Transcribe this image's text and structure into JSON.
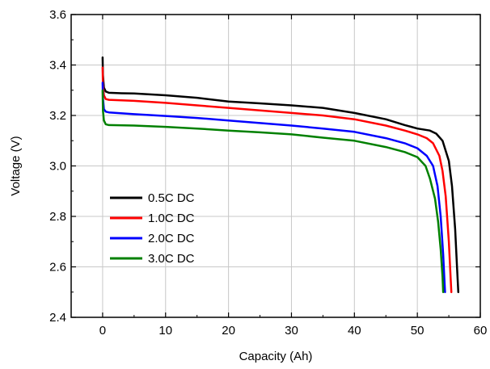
{
  "chart_data": {
    "type": "line",
    "title": "",
    "xlabel": "Capacity (Ah)",
    "ylabel": "Voltage (V)",
    "xlim": [
      -5,
      60
    ],
    "ylim": [
      2.4,
      3.6
    ],
    "xticks": [
      0,
      10,
      20,
      30,
      40,
      50,
      60
    ],
    "xtick_labels": [
      "0",
      "10",
      "20",
      "30",
      "40",
      "50",
      "60"
    ],
    "yticks": [
      2.4,
      2.6,
      2.8,
      3.0,
      3.2,
      3.4,
      3.6
    ],
    "ytick_labels": [
      "2.4",
      "2.6",
      "2.8",
      "3.0",
      "3.2",
      "3.4",
      "3.6"
    ],
    "grid": true,
    "legend_position": "bottom-left",
    "series": [
      {
        "name": "0.5C DC",
        "color": "#000000",
        "points": [
          [
            0,
            3.43
          ],
          [
            0.05,
            3.36
          ],
          [
            0.2,
            3.31
          ],
          [
            0.5,
            3.295
          ],
          [
            1.0,
            3.29
          ],
          [
            3,
            3.288
          ],
          [
            5,
            3.287
          ],
          [
            10,
            3.28
          ],
          [
            15,
            3.27
          ],
          [
            20,
            3.255
          ],
          [
            25,
            3.248
          ],
          [
            30,
            3.24
          ],
          [
            35,
            3.23
          ],
          [
            40,
            3.21
          ],
          [
            45,
            3.185
          ],
          [
            48,
            3.162
          ],
          [
            50,
            3.148
          ],
          [
            52,
            3.14
          ],
          [
            53,
            3.128
          ],
          [
            54,
            3.1
          ],
          [
            55,
            3.02
          ],
          [
            55.5,
            2.92
          ],
          [
            56,
            2.75
          ],
          [
            56.3,
            2.6
          ],
          [
            56.5,
            2.5
          ]
        ]
      },
      {
        "name": "1.0C DC",
        "color": "#ff0000",
        "points": [
          [
            0,
            3.39
          ],
          [
            0.05,
            3.32
          ],
          [
            0.2,
            3.28
          ],
          [
            0.5,
            3.265
          ],
          [
            1.0,
            3.262
          ],
          [
            5,
            3.258
          ],
          [
            10,
            3.25
          ],
          [
            15,
            3.24
          ],
          [
            20,
            3.23
          ],
          [
            25,
            3.22
          ],
          [
            30,
            3.21
          ],
          [
            35,
            3.2
          ],
          [
            40,
            3.185
          ],
          [
            45,
            3.16
          ],
          [
            48,
            3.14
          ],
          [
            50,
            3.125
          ],
          [
            51.5,
            3.11
          ],
          [
            52.5,
            3.09
          ],
          [
            53.5,
            3.04
          ],
          [
            54,
            2.98
          ],
          [
            54.5,
            2.88
          ],
          [
            55,
            2.7
          ],
          [
            55.3,
            2.55
          ],
          [
            55.4,
            2.5
          ]
        ]
      },
      {
        "name": "2.0C DC",
        "color": "#0000ff",
        "points": [
          [
            0,
            3.33
          ],
          [
            0.05,
            3.27
          ],
          [
            0.2,
            3.225
          ],
          [
            0.5,
            3.215
          ],
          [
            1.0,
            3.212
          ],
          [
            5,
            3.205
          ],
          [
            10,
            3.198
          ],
          [
            15,
            3.19
          ],
          [
            20,
            3.18
          ],
          [
            25,
            3.17
          ],
          [
            30,
            3.16
          ],
          [
            35,
            3.148
          ],
          [
            40,
            3.135
          ],
          [
            45,
            3.11
          ],
          [
            48,
            3.09
          ],
          [
            50,
            3.07
          ],
          [
            51.5,
            3.04
          ],
          [
            52.5,
            3.0
          ],
          [
            53.2,
            2.92
          ],
          [
            53.7,
            2.8
          ],
          [
            54.1,
            2.65
          ],
          [
            54.3,
            2.55
          ],
          [
            54.4,
            2.5
          ]
        ]
      },
      {
        "name": "3.0C DC",
        "color": "#008000",
        "points": [
          [
            0,
            3.3
          ],
          [
            0.05,
            3.22
          ],
          [
            0.2,
            3.18
          ],
          [
            0.5,
            3.165
          ],
          [
            1.0,
            3.162
          ],
          [
            5,
            3.16
          ],
          [
            10,
            3.155
          ],
          [
            15,
            3.148
          ],
          [
            20,
            3.14
          ],
          [
            25,
            3.133
          ],
          [
            30,
            3.125
          ],
          [
            35,
            3.112
          ],
          [
            40,
            3.1
          ],
          [
            45,
            3.075
          ],
          [
            48,
            3.055
          ],
          [
            50,
            3.035
          ],
          [
            51.3,
            3.0
          ],
          [
            52,
            2.95
          ],
          [
            52.8,
            2.87
          ],
          [
            53.3,
            2.78
          ],
          [
            53.7,
            2.67
          ],
          [
            54.0,
            2.56
          ],
          [
            54.1,
            2.5
          ]
        ]
      }
    ]
  }
}
